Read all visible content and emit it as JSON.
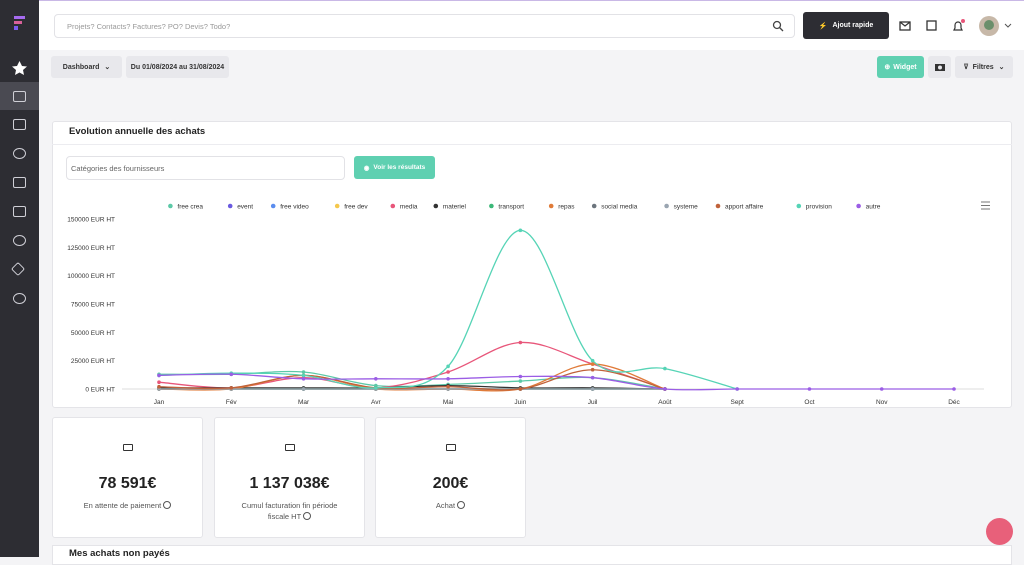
{
  "search_placeholder": "Projets? Contacts? Factures? PO? Devis? Todo?",
  "quick_add": "Ajout rapide",
  "toolbar": {
    "dashboard": "Dashboard",
    "date_range": "Du 01/08/2024 au 31/08/2024",
    "widget": "Widget",
    "filters": "Filtres"
  },
  "panel": {
    "title": "Evolution annuelle des achats",
    "filter_placeholder": "Catégories des fournisseurs",
    "submit": "Voir les résultats",
    "chart_data": {
      "type": "line",
      "categories": [
        "Jan",
        "Fév",
        "Mar",
        "Avr",
        "Mai",
        "Juin",
        "Juil",
        "Août",
        "Sept",
        "Oct",
        "Nov",
        "Déc"
      ],
      "ylim": [
        0,
        150000
      ],
      "yticks": [
        {
          "value": 0,
          "label": "0 EUR HT"
        },
        {
          "value": 25000,
          "label": "25000 EUR HT"
        },
        {
          "value": 50000,
          "label": "50000 EUR HT"
        },
        {
          "value": 75000,
          "label": "75000 EUR HT"
        },
        {
          "value": 100000,
          "label": "100000 EUR HT"
        },
        {
          "value": 125000,
          "label": "125000 EUR HT"
        },
        {
          "value": 150000,
          "label": "150000 EUR HT"
        }
      ],
      "series": [
        {
          "name": "free crea",
          "color": "#5cc9a7",
          "values": [
            13000,
            13000,
            15000,
            3000,
            4000,
            7000,
            10000,
            0,
            null,
            null,
            null,
            null
          ]
        },
        {
          "name": "event",
          "color": "#6a5ae0",
          "values": [
            0,
            0,
            0,
            0,
            0,
            0,
            0,
            0,
            null,
            null,
            null,
            null
          ]
        },
        {
          "name": "free video",
          "color": "#5b8def",
          "values": [
            0,
            0,
            0,
            0,
            0,
            0,
            0,
            0,
            null,
            null,
            null,
            null
          ]
        },
        {
          "name": "free dev",
          "color": "#f5c84c",
          "values": [
            0,
            0,
            0,
            0,
            0,
            0,
            0,
            0,
            null,
            null,
            null,
            null
          ]
        },
        {
          "name": "media",
          "color": "#e8567a",
          "values": [
            6000,
            1000,
            10000,
            1000,
            15000,
            41000,
            22000,
            0,
            null,
            null,
            null,
            null
          ]
        },
        {
          "name": "materiel",
          "color": "#333333",
          "values": [
            1000,
            1000,
            1000,
            1000,
            3000,
            1000,
            1000,
            0,
            null,
            null,
            null,
            null
          ]
        },
        {
          "name": "transport",
          "color": "#3cb878",
          "values": [
            0,
            0,
            0,
            0,
            0,
            0,
            0,
            0,
            null,
            null,
            null,
            null
          ]
        },
        {
          "name": "repas",
          "color": "#e07b39",
          "values": [
            0,
            0,
            12000,
            0,
            0,
            0,
            22000,
            0,
            null,
            null,
            null,
            null
          ]
        },
        {
          "name": "social media",
          "color": "#6c757d",
          "values": [
            0,
            0,
            0,
            0,
            0,
            0,
            0,
            0,
            null,
            null,
            null,
            null
          ]
        },
        {
          "name": "systeme",
          "color": "#9aa5b1",
          "values": [
            0,
            0,
            0,
            0,
            0,
            0,
            0,
            0,
            null,
            null,
            null,
            null
          ]
        },
        {
          "name": "apport affaire",
          "color": "#c0623a",
          "values": [
            2000,
            1000,
            12000,
            1000,
            2000,
            0,
            17000,
            0,
            null,
            null,
            null,
            null
          ]
        },
        {
          "name": "provision",
          "color": "#56d4b6",
          "values": [
            12000,
            14000,
            12000,
            1000,
            20000,
            140000,
            25000,
            18000,
            0,
            null,
            null,
            null
          ]
        },
        {
          "name": "autre",
          "color": "#9b5de5",
          "values": [
            12000,
            13000,
            9000,
            9000,
            9000,
            11000,
            10000,
            0,
            0,
            0,
            0,
            0
          ]
        }
      ]
    }
  },
  "stats": [
    {
      "value": "78 591€",
      "label": "En attente de paiement"
    },
    {
      "value": "1 137 038€",
      "label": "Cumul facturation fin période fiscale HT"
    },
    {
      "value": "200€",
      "label": "Achat"
    }
  ],
  "section_title": "Mes achats non payés"
}
